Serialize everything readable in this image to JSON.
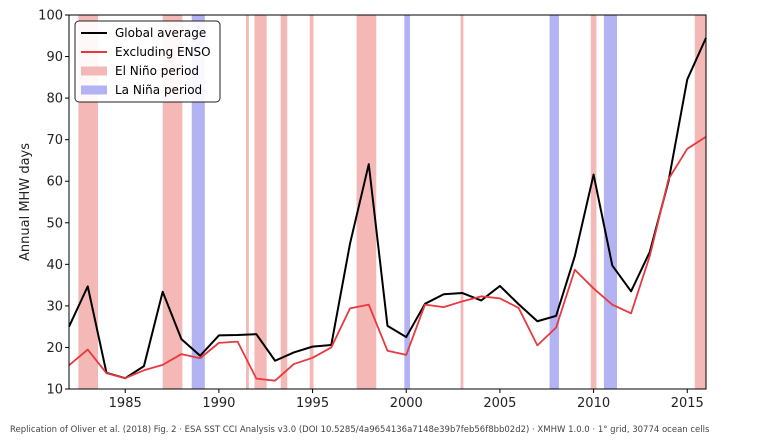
{
  "chart_data": {
    "type": "line",
    "title": "",
    "xlabel": "",
    "ylabel": "Annual MHW days",
    "xlim": [
      1982,
      2016
    ],
    "ylim": [
      10,
      100
    ],
    "xticks": [
      1985,
      1990,
      1995,
      2000,
      2005,
      2010,
      2015
    ],
    "yticks": [
      10,
      20,
      30,
      40,
      50,
      60,
      70,
      80,
      90,
      100
    ],
    "grid": false,
    "legend_position": "top-left",
    "x": [
      1982,
      1983,
      1984,
      1985,
      1986,
      1987,
      1988,
      1989,
      1990,
      1991,
      1992,
      1993,
      1994,
      1995,
      1996,
      1997,
      1998,
      1999,
      2000,
      2001,
      2002,
      2003,
      2004,
      2005,
      2006,
      2007,
      2008,
      2009,
      2010,
      2011,
      2012,
      2013,
      2014,
      2015,
      2016
    ],
    "series": [
      {
        "name": "Global average",
        "color": "#000000",
        "values": [
          25.0,
          34.7,
          13.9,
          12.6,
          15.5,
          33.4,
          22.0,
          18.0,
          22.9,
          23.0,
          23.2,
          16.8,
          18.8,
          20.2,
          20.6,
          45.0,
          64.1,
          25.2,
          22.5,
          30.5,
          32.8,
          33.1,
          31.3,
          34.8,
          30.4,
          26.3,
          27.6,
          42.0,
          61.6,
          39.7,
          33.5,
          43.0,
          60.0,
          84.5,
          94.5
        ]
      },
      {
        "name": "Excluding ENSO",
        "color": "#e8393e",
        "values": [
          15.7,
          19.5,
          13.8,
          12.6,
          14.5,
          15.8,
          18.4,
          17.4,
          21.1,
          21.4,
          12.5,
          12.0,
          16.0,
          17.5,
          20.0,
          29.4,
          30.3,
          19.2,
          18.2,
          30.3,
          29.7,
          31.1,
          32.3,
          31.8,
          29.5,
          20.5,
          24.8,
          38.7,
          34.2,
          30.3,
          28.2,
          42.0,
          60.5,
          67.8,
          70.7
        ]
      }
    ],
    "period_types": [
      {
        "name": "El Niño period",
        "color": "#f4b8b6"
      },
      {
        "name": "La Niña period",
        "color": "#b3b3f3"
      }
    ],
    "periods": [
      {
        "type": "El Niño period",
        "start": 1982.5,
        "end": 1983.55
      },
      {
        "type": "El Niño period",
        "start": 1987.0,
        "end": 1988.05
      },
      {
        "type": "La Niña period",
        "start": 1988.55,
        "end": 1989.25
      },
      {
        "type": "El Niño period",
        "start": 1991.45,
        "end": 1991.6
      },
      {
        "type": "El Niño period",
        "start": 1991.9,
        "end": 1992.55
      },
      {
        "type": "El Niño period",
        "start": 1993.3,
        "end": 1993.65
      },
      {
        "type": "El Niño period",
        "start": 1994.85,
        "end": 1995.05
      },
      {
        "type": "El Niño period",
        "start": 1997.35,
        "end": 1998.4
      },
      {
        "type": "La Niña period",
        "start": 1999.9,
        "end": 2000.2
      },
      {
        "type": "El Niño period",
        "start": 2002.9,
        "end": 2003.05
      },
      {
        "type": "La Niña period",
        "start": 2007.65,
        "end": 2008.15
      },
      {
        "type": "El Niño period",
        "start": 2009.85,
        "end": 2010.15
      },
      {
        "type": "La Niña period",
        "start": 2010.55,
        "end": 2011.25
      },
      {
        "type": "El Niño period",
        "start": 2015.4,
        "end": 2016.0
      }
    ]
  },
  "caption": "Replication of Oliver et al. (2018) Fig. 2 · ESA SST CCI Analysis v3.0 (DOI 10.5285/4a9654136a7148e39b7feb56f8bb02d2) · XMHW 1.0.0 · 1° grid, 30774 ocean cells"
}
